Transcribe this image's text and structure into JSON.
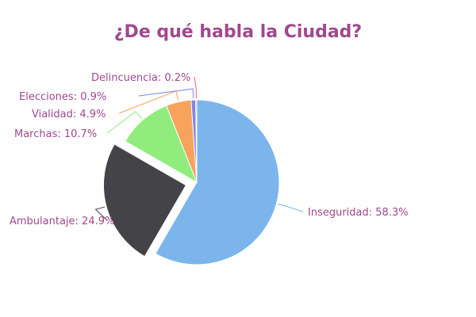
{
  "colors": {
    "title": "#a0488e",
    "label": "#a0488e"
  },
  "chart_data": {
    "type": "pie",
    "title": "¿De qué habla la Ciudad?",
    "slices": [
      {
        "name": "Inseguridad",
        "value": 58.3,
        "label": "Inseguridad: 58.3%",
        "color": "#7cb5ec",
        "exploded": false
      },
      {
        "name": "Ambulantaje",
        "value": 24.9,
        "label": "Ambulantaje: 24.9%",
        "color": "#434348",
        "exploded": true
      },
      {
        "name": "Marchas",
        "value": 10.7,
        "label": "Marchas: 10.7%",
        "color": "#90ed7d",
        "exploded": false
      },
      {
        "name": "Vialidad",
        "value": 4.9,
        "label": "Vialidad: 4.9%",
        "color": "#f7a35c",
        "exploded": false
      },
      {
        "name": "Elecciones",
        "value": 0.9,
        "label": "Elecciones: 0.9%",
        "color": "#8085e9",
        "exploded": false
      },
      {
        "name": "Delincuencia",
        "value": 0.2,
        "label": "Delincuencia: 0.2%",
        "color": "#f15c80",
        "exploded": false
      }
    ]
  }
}
